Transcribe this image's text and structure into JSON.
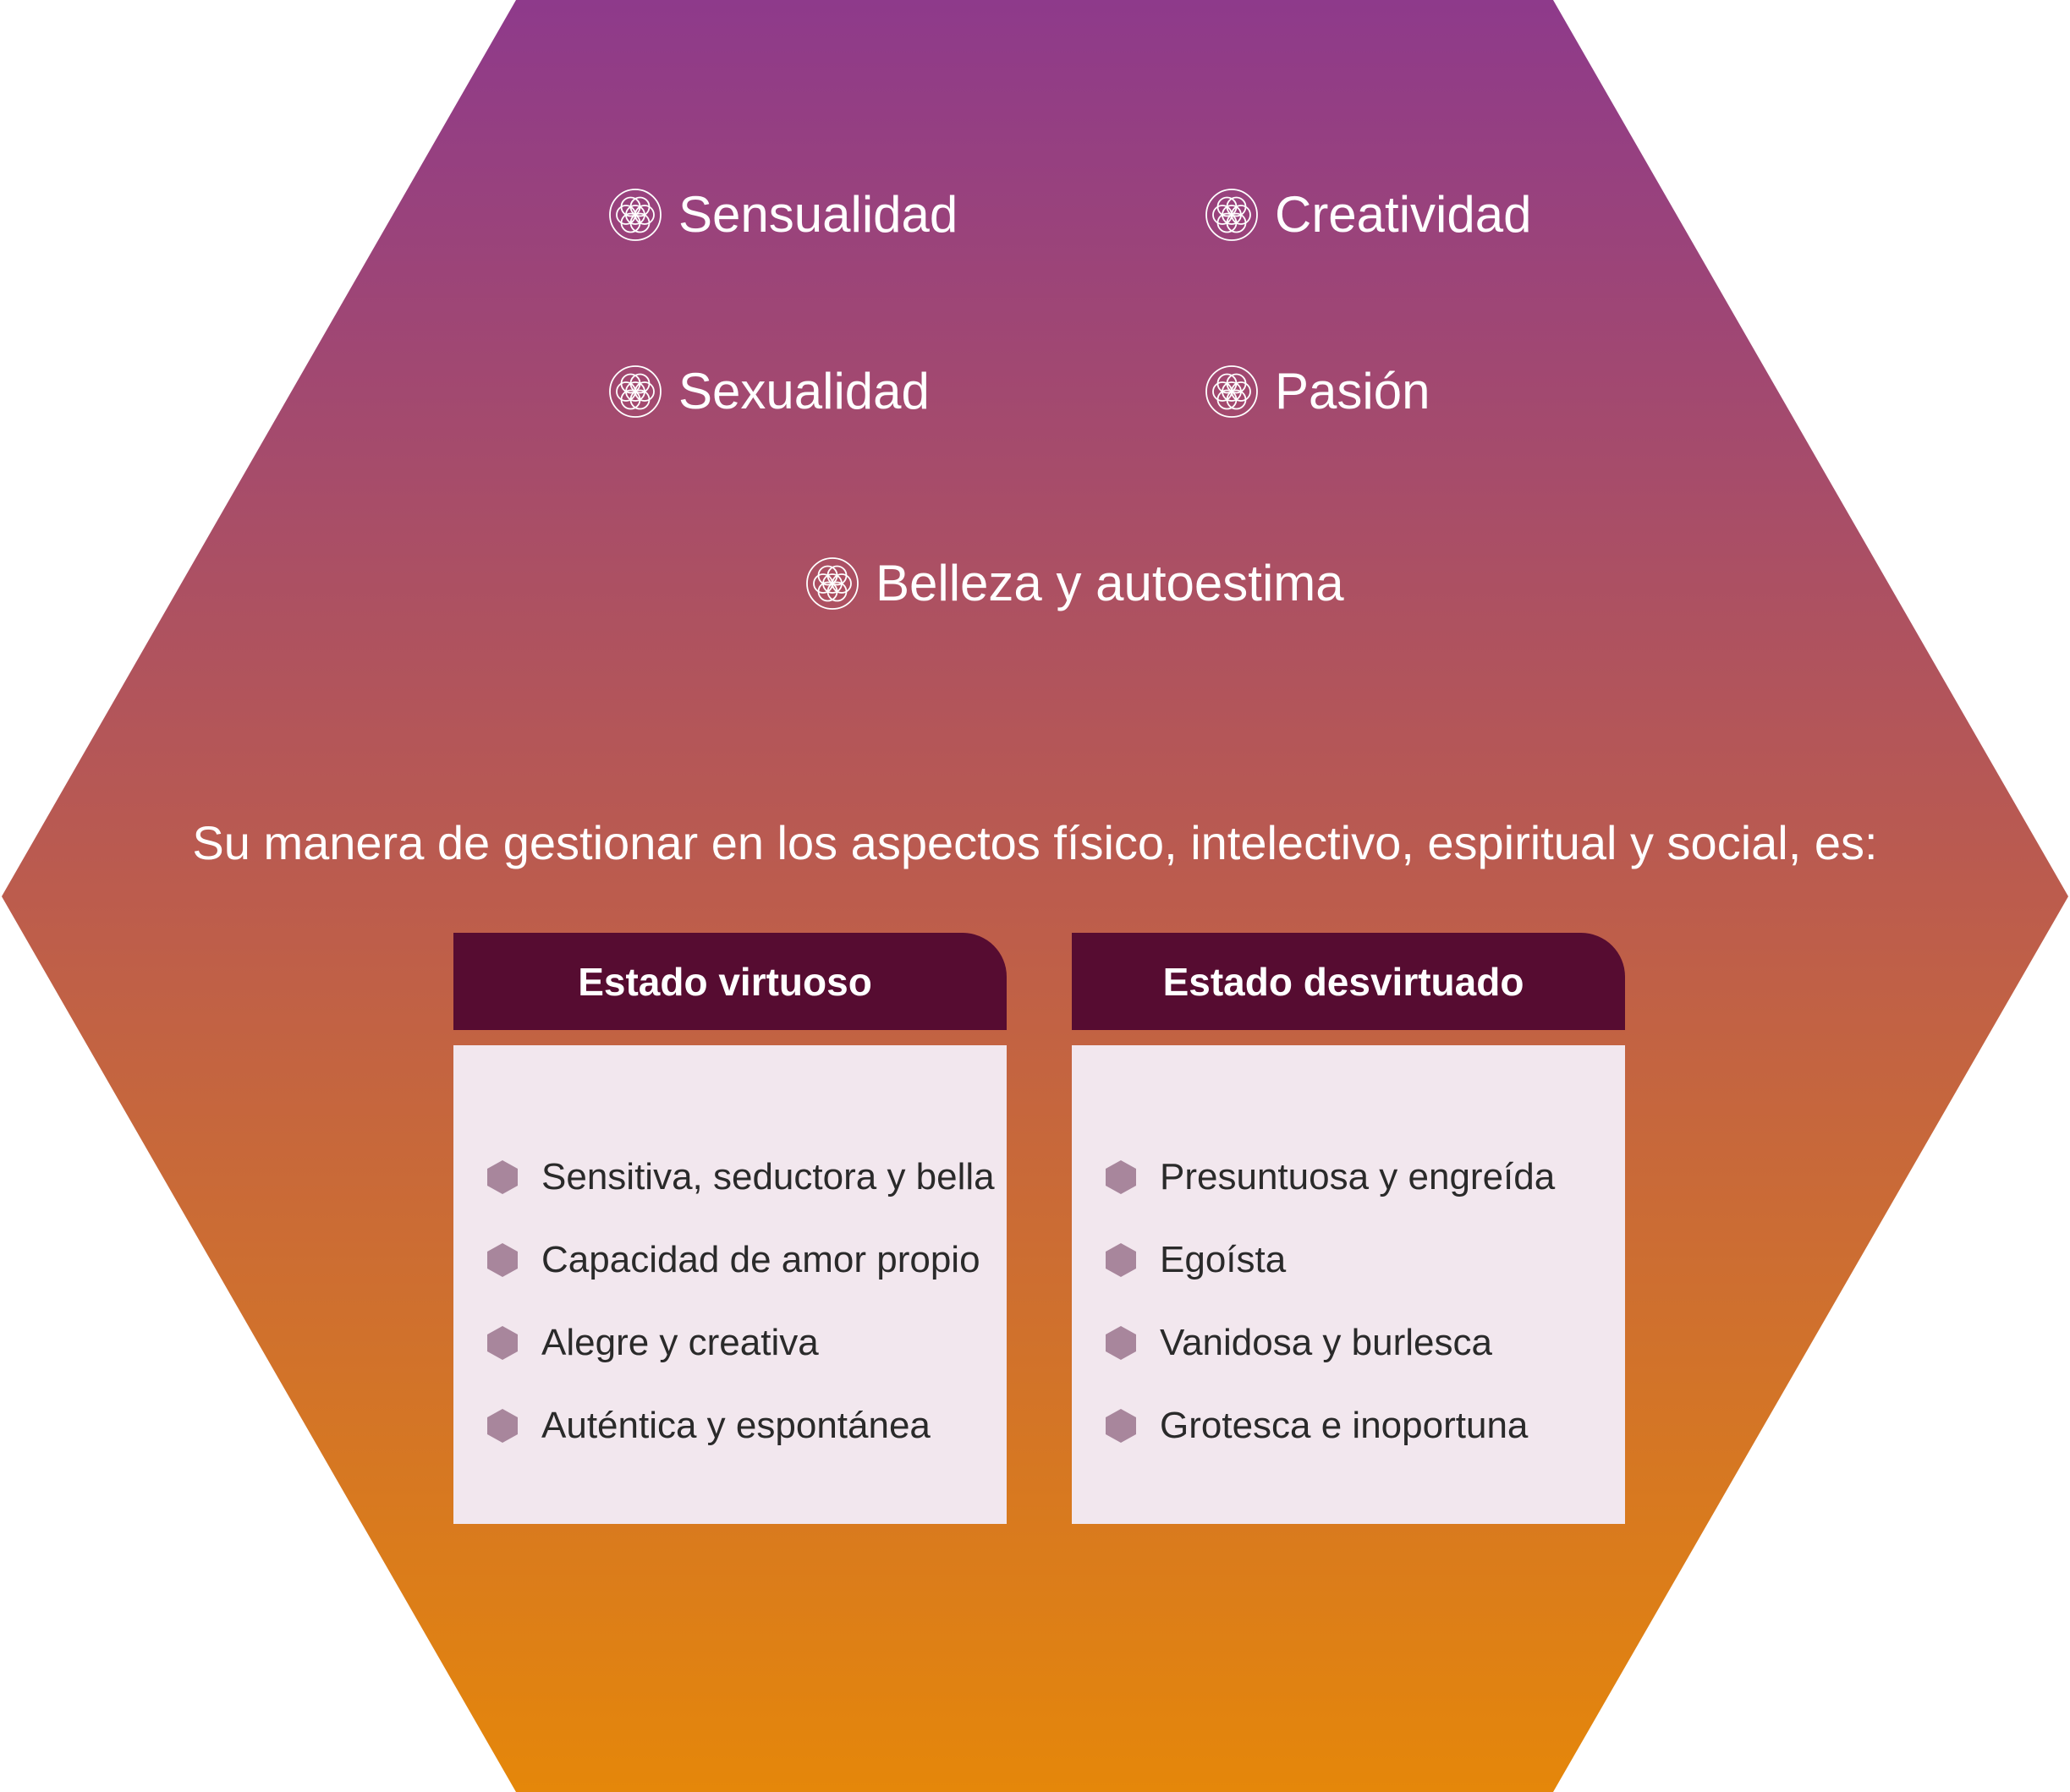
{
  "colors": {
    "hexagon_top": "#8e3a8b",
    "hexagon_bottom": "#e5870a",
    "panel_header": "#560c31",
    "panel_body": "#f2e7ee",
    "bullet": "#a8869c",
    "text_light": "#ffffff",
    "text_dark": "#2a2a2a"
  },
  "attributes": {
    "sensualidad": "Sensualidad",
    "creatividad": "Creatividad",
    "sexualidad": "Sexualidad",
    "pasion": "Pasión",
    "belleza": "Belleza y autoestima"
  },
  "attribute_icon": "flower-of-life-icon",
  "intro": "Su manera de gestionar en los aspectos físico, intelectivo, espiritual y social, es:",
  "panels": {
    "virtuoso": {
      "title": "Estado virtuoso",
      "items": [
        "Sensitiva, seductora y bella",
        "Capacidad de amor propio",
        "Alegre y creativa",
        "Auténtica y espontánea"
      ]
    },
    "desvirtuado": {
      "title": "Estado desvirtuado",
      "items": [
        "Presuntuosa y engreída",
        "Egoísta",
        "Vanidosa y burlesca",
        "Grotesca e inoportuna"
      ]
    }
  },
  "bullet_icon": "hexagon-bullet-icon"
}
